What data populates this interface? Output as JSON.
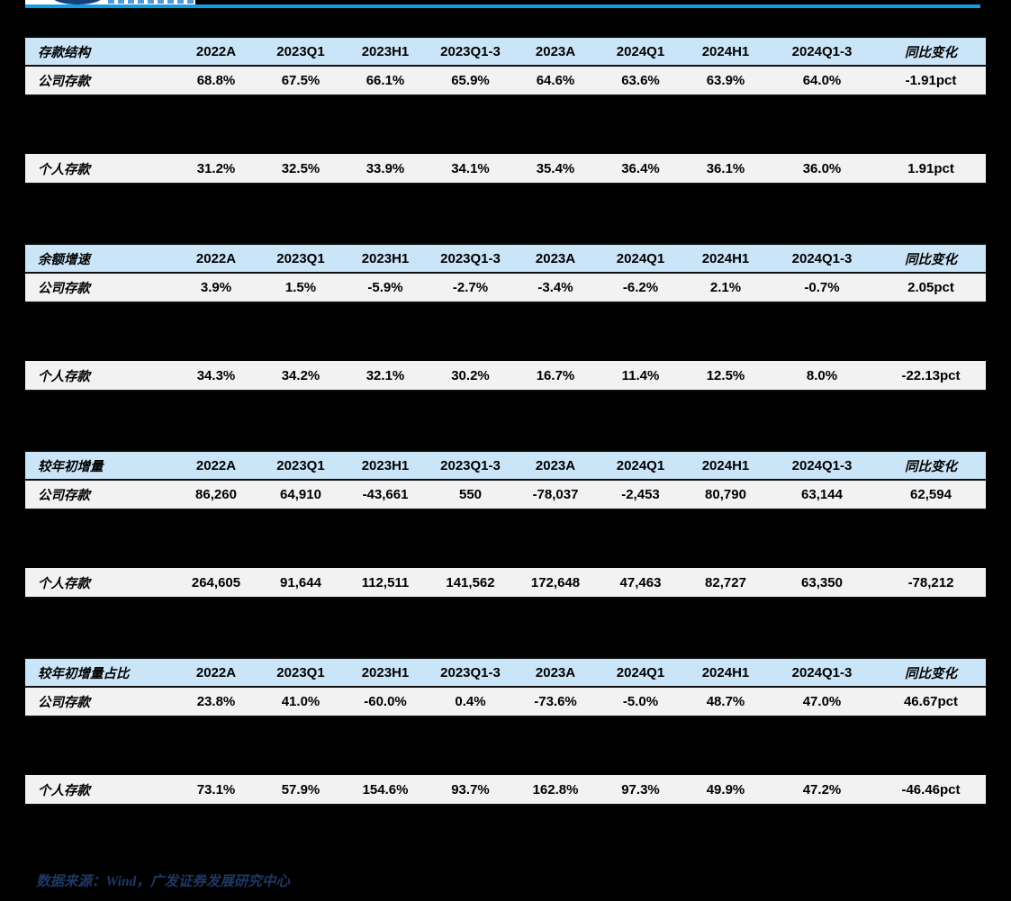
{
  "branding": {
    "logo": "gf-securities-logo-partial",
    "rule_color": "#119fe4"
  },
  "columns": [
    "2022A",
    "2023Q1",
    "2023H1",
    "2023Q1-3",
    "2023A",
    "2024Q1",
    "2024H1",
    "2024Q1-3",
    "同比变化"
  ],
  "tables": [
    {
      "title": "存款结构",
      "rows": [
        {
          "label": "公司存款",
          "values": [
            "68.8%",
            "67.5%",
            "66.1%",
            "65.9%",
            "64.6%",
            "63.6%",
            "63.9%",
            "64.0%",
            "-1.91pct"
          ]
        },
        {
          "label": "个人存款",
          "values": [
            "31.2%",
            "32.5%",
            "33.9%",
            "34.1%",
            "35.4%",
            "36.4%",
            "36.1%",
            "36.0%",
            "1.91pct"
          ]
        }
      ]
    },
    {
      "title": "余额增速",
      "rows": [
        {
          "label": "公司存款",
          "values": [
            "3.9%",
            "1.5%",
            "-5.9%",
            "-2.7%",
            "-3.4%",
            "-6.2%",
            "2.1%",
            "-0.7%",
            "2.05pct"
          ]
        },
        {
          "label": "个人存款",
          "values": [
            "34.3%",
            "34.2%",
            "32.1%",
            "30.2%",
            "16.7%",
            "11.4%",
            "12.5%",
            "8.0%",
            "-22.13pct"
          ]
        }
      ]
    },
    {
      "title": "较年初增量",
      "rows": [
        {
          "label": "公司存款",
          "values": [
            "86,260",
            "64,910",
            "-43,661",
            "550",
            "-78,037",
            "-2,453",
            "80,790",
            "63,144",
            "62,594"
          ]
        },
        {
          "label": "个人存款",
          "values": [
            "264,605",
            "91,644",
            "112,511",
            "141,562",
            "172,648",
            "47,463",
            "82,727",
            "63,350",
            "-78,212"
          ]
        }
      ]
    },
    {
      "title": "较年初增量占比",
      "rows": [
        {
          "label": "公司存款",
          "values": [
            "23.8%",
            "41.0%",
            "-60.0%",
            "0.4%",
            "-73.6%",
            "-5.0%",
            "48.7%",
            "47.0%",
            "46.67pct"
          ]
        },
        {
          "label": "个人存款",
          "values": [
            "73.1%",
            "57.9%",
            "154.6%",
            "93.7%",
            "162.8%",
            "97.3%",
            "49.9%",
            "47.2%",
            "-46.46pct"
          ]
        }
      ]
    }
  ],
  "footer": {
    "source_text": "数据来源：Wind，广发证券发展研究中心"
  },
  "colors": {
    "page_bg": "#000000",
    "header_fill": "#cbe5f8",
    "row_fill": "#f2f2f2",
    "rule_blue": "#119fe4",
    "footer_text": "#1f3864"
  }
}
